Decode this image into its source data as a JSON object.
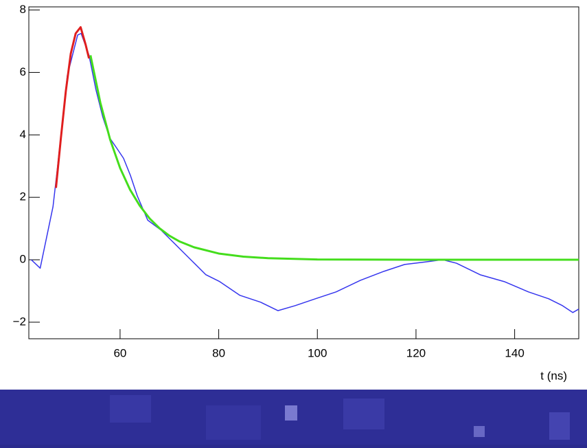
{
  "chart_data": {
    "type": "line",
    "x_label": "t (ns)",
    "xlim": [
      41.5,
      153
    ],
    "ylim": [
      -2.53,
      8.1
    ],
    "xticks": [
      60,
      80,
      100,
      120,
      140
    ],
    "yticks": [
      {
        "value": -2,
        "label": "−2"
      },
      0,
      2,
      4,
      6,
      8
    ],
    "series": [
      {
        "color": "#3535ee",
        "width": 1.5,
        "x": [
          42,
          43.8,
          46.4,
          47.2,
          49.3,
          51.4,
          52.1,
          53.7,
          55.1,
          56.5,
          57.9,
          59.3,
          60.7,
          62.1,
          63.5,
          65.6,
          68.3,
          70.4,
          72.5,
          74.6,
          77.4,
          80.2,
          84.3,
          88.5,
          92,
          95.5,
          99.6,
          103.8,
          108.7,
          113.5,
          117.7,
          121.9,
          125.4,
          128.2,
          133,
          137.9,
          142.8,
          146.9,
          149.7,
          151.8,
          153
        ],
        "values": [
          0,
          -0.27,
          1.7,
          2.8,
          5.9,
          7.2,
          7.25,
          6.55,
          5.45,
          4.57,
          3.9,
          3.58,
          3.25,
          2.7,
          2.04,
          1.27,
          0.95,
          0.62,
          0.29,
          -0.04,
          -0.48,
          -0.7,
          -1.14,
          -1.36,
          -1.63,
          -1.47,
          -1.25,
          -1.03,
          -0.66,
          -0.37,
          -0.15,
          -0.07,
          0,
          -0.11,
          -0.48,
          -0.7,
          -1.03,
          -1.25,
          -1.47,
          -1.69,
          -1.58
        ]
      },
      {
        "color": "#e01e1e",
        "width": 3,
        "x": [
          47,
          48,
          49,
          50,
          51,
          52,
          53,
          53.7
        ],
        "values": [
          2.3,
          3.9,
          5.4,
          6.6,
          7.25,
          7.45,
          6.9,
          6.45
        ]
      },
      {
        "color": "#44dd1c",
        "width": 3,
        "x": [
          54,
          56,
          58,
          60,
          62,
          64,
          66,
          68,
          70,
          72,
          75,
          80,
          85,
          90,
          100,
          120,
          153
        ],
        "values": [
          6.55,
          5.03,
          3.84,
          2.94,
          2.25,
          1.73,
          1.32,
          1.01,
          0.77,
          0.59,
          0.4,
          0.2,
          0.1,
          0.05,
          0.01,
          0,
          0
        ]
      }
    ]
  }
}
